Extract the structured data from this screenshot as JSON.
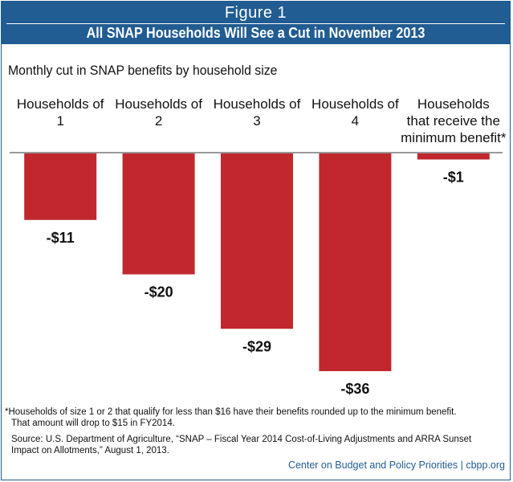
{
  "header": {
    "figure_label": "Figure 1",
    "title": "All SNAP Households Will See a Cut in November 2013"
  },
  "colors": {
    "header_bg": "#215c92",
    "bar": "#c0282e",
    "credit": "#215c92"
  },
  "chart_data": {
    "type": "bar",
    "title": "All SNAP Households Will See a Cut in November 2013",
    "subtitle": "Monthly cut in SNAP benefits by household size",
    "categories": [
      [
        "Households of",
        "1"
      ],
      [
        "Households of",
        "2"
      ],
      [
        "Households of",
        "3"
      ],
      [
        "Households of",
        "4"
      ],
      [
        "Households",
        "that receive the",
        "minimum benefit*"
      ]
    ],
    "values": [
      -11,
      -20,
      -29,
      -36,
      -1
    ],
    "value_labels": [
      "-$11",
      "-$20",
      "-$29",
      "-$36",
      "-$1"
    ],
    "ylim": [
      -36,
      0
    ],
    "grid": false,
    "legend": "none"
  },
  "footnote": {
    "line1": "*Households of size 1 or 2 that qualify for less than $16 have their benefits rounded up to the minimum benefit.",
    "line2": "That amount will drop to $15 in FY2014."
  },
  "source": {
    "line1": "Source: U.S. Department of Agriculture, “SNAP – Fiscal Year 2014 Cost-of-Living Adjustments and ARRA Sunset",
    "line2": "Impact on Allotments,” August 1, 2013."
  },
  "credit": "Center on Budget and Policy Priorities | cbpp.org"
}
